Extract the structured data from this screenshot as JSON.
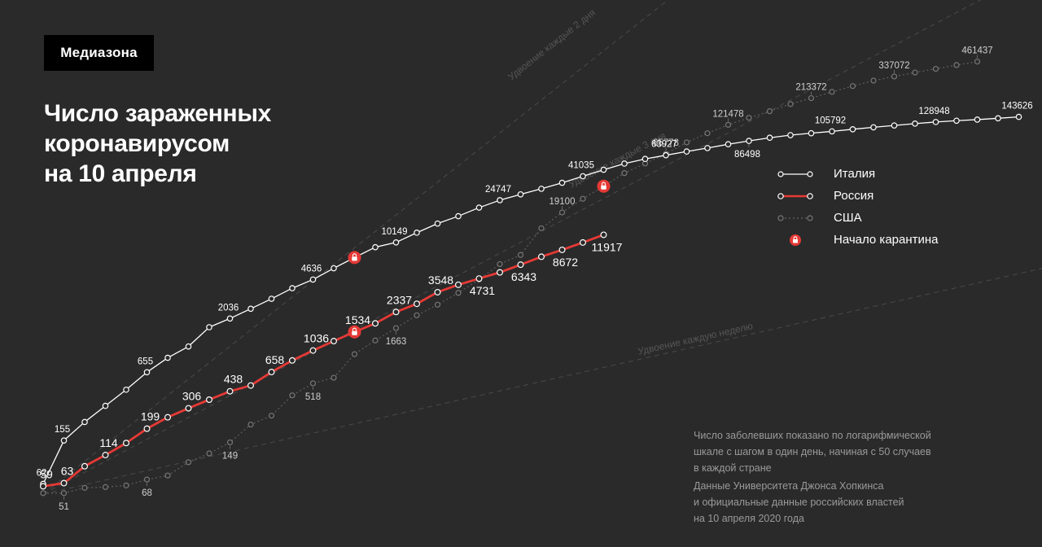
{
  "brand": "Медиазона",
  "title_lines": [
    "Число зараженных",
    "коронавирусом",
    "на 10 апреля"
  ],
  "legend": [
    {
      "label": "Италия",
      "series": "italy"
    },
    {
      "label": "Россия",
      "series": "russia"
    },
    {
      "label": "США",
      "series": "usa"
    },
    {
      "label": "Начало карантина",
      "series": "quarantine"
    }
  ],
  "note_lines": [
    "Число заболевших показано по логарифмической",
    "шкале с шагом в один день, начиная с 50 случаев",
    "в каждой стране"
  ],
  "source_lines": [
    "Данные Университета Джонса Хопкинса",
    "и официальные данные российских властей",
    "на 10 апреля 2020 года"
  ],
  "colors": {
    "italy": "#ffffff",
    "russia": "#e53935",
    "usa": "#777777",
    "background": "#2a2a2a"
  },
  "chart_data": {
    "type": "line",
    "x_label": "",
    "y_label": "",
    "x_step": "1 day",
    "y_scale": "log",
    "y_start": 50,
    "reference_lines": [
      {
        "label": "Удвоение каждые 2 дня",
        "doubling_days": 2
      },
      {
        "label": "Удвоение каждые 3 дня",
        "doubling_days": 3
      },
      {
        "label": "Удвоение каждую неделю",
        "doubling_days": 7
      }
    ],
    "series": [
      {
        "name": "Италия",
        "key": "italy",
        "values": [
          62,
          155,
          229,
          322,
          453,
          655,
          888,
          1128,
          1694,
          2036,
          2502,
          3089,
          3858,
          4636,
          5883,
          7375,
          9172,
          10149,
          12462,
          15113,
          17660,
          21157,
          24747,
          27980,
          31506,
          35713,
          41035,
          47021,
          53578,
          59138,
          63927,
          69176,
          74386,
          80589,
          86498,
          92472,
          97689,
          101739,
          105792,
          110574,
          115242,
          119827,
          124632,
          128948,
          132547,
          135586,
          139422,
          143626
        ],
        "labels": {
          "0": "62",
          "1": "155",
          "5": "655",
          "9": "2036",
          "13": "4636",
          "17": "10149",
          "22": "24747",
          "26": "41035",
          "30": "63927",
          "34": "86498",
          "38": "105792",
          "43": "128948",
          "47": "143626"
        },
        "quarantine_index": 15
      },
      {
        "name": "Россия",
        "key": "russia",
        "values": [
          59,
          63,
          90,
          114,
          147,
          199,
          253,
          306,
          367,
          438,
          495,
          658,
          840,
          1036,
          1264,
          1534,
          1836,
          2337,
          2777,
          3548,
          4149,
          4731,
          5389,
          6343,
          7497,
          8672,
          10131,
          11917
        ],
        "labels": {
          "0": "59",
          "1": "63",
          "3": "114",
          "5": "199",
          "7": "306",
          "9": "438",
          "11": "658",
          "13": "1036",
          "15": "1534",
          "17": "2337",
          "19": "3548",
          "21": "4731",
          "23": "6343",
          "25": "8672",
          "27": "11917"
        },
        "quarantine_index": 15
      },
      {
        "name": "США",
        "key": "usa",
        "values": [
          51,
          51,
          57,
          58,
          60,
          68,
          74,
          98,
          118,
          149,
          217,
          262,
          402,
          518,
          583,
          959,
          1281,
          1663,
          2179,
          2726,
          3499,
          4632,
          6421,
          7783,
          13677,
          19100,
          25489,
          33276,
          43847,
          53740,
          65778,
          83836,
          101657,
          121478,
          140886,
          161807,
          188172,
          213372,
          243453,
          275586,
          308850,
          337072,
          366614,
          396223,
          429052,
          461437
        ],
        "labels": {
          "1": "51",
          "5": "68",
          "9": "149",
          "13": "518",
          "17": "1663",
          "25": "19100",
          "30": "65778",
          "33": "121478",
          "37": "213372",
          "41": "337072",
          "45": "461437"
        },
        "quarantine_index": 27
      }
    ]
  }
}
